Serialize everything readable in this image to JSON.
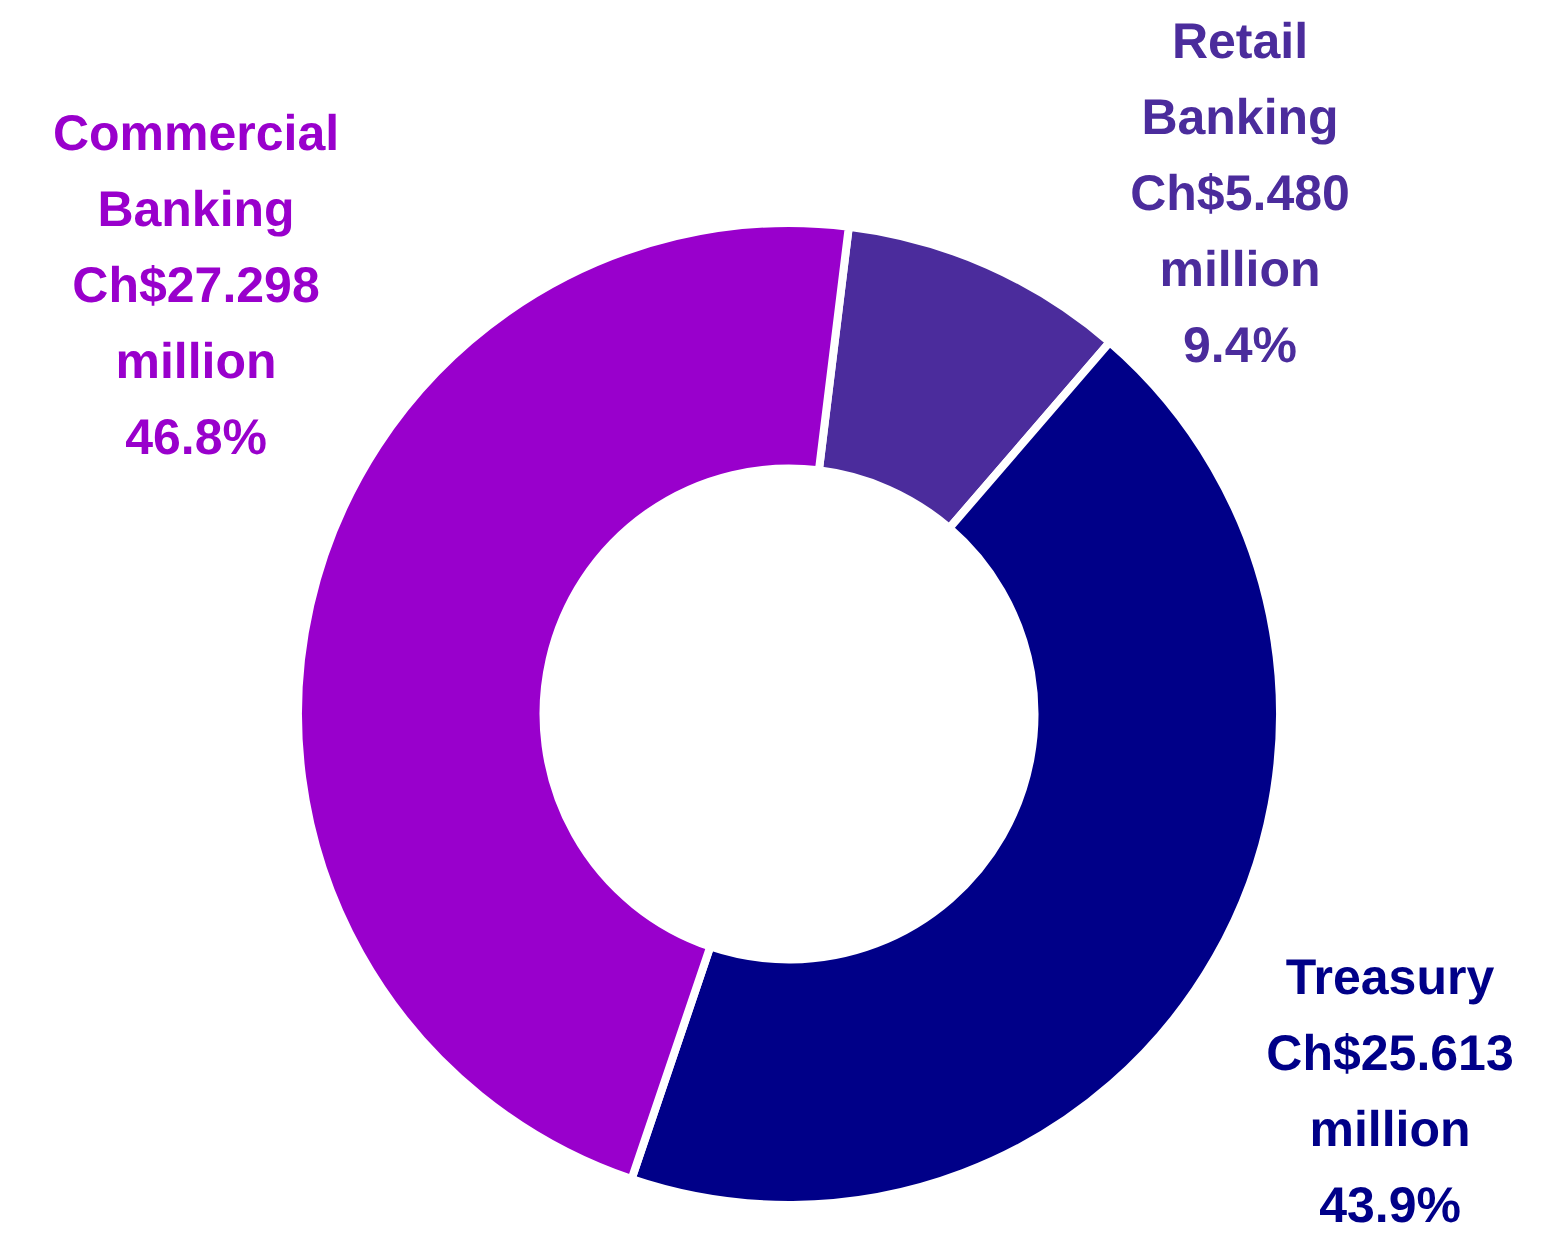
{
  "chart_data": {
    "type": "donut",
    "categories": [
      "Retail Banking",
      "Treasury",
      "Commercial Banking"
    ],
    "values": [
      5.48,
      25.613,
      27.298
    ],
    "colors": [
      "#4b2c9c",
      "#000088",
      "#9900cc"
    ],
    "value_labels": [
      "Ch$5.480\nmillion\n9.4%",
      "Ch$25.613\nmillion\n43.9%",
      "Ch$27.298\nmillion\n46.8%"
    ],
    "legend": false
  }
}
